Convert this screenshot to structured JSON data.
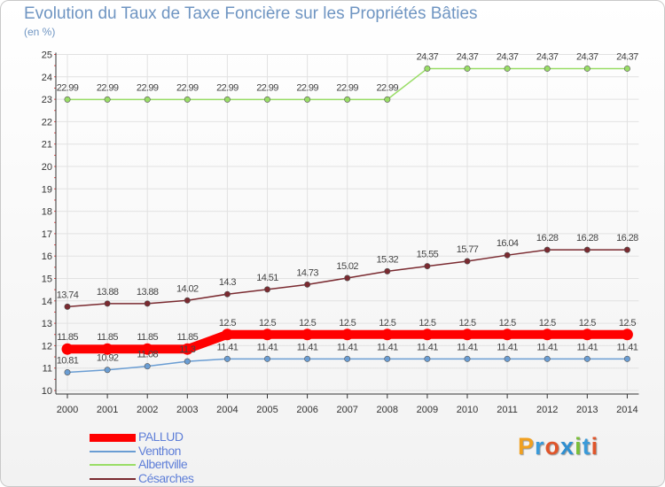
{
  "title": "Evolution du Taux de Taxe Foncière sur les Propriétés Bâties",
  "subtitle": "(en %)",
  "brand": {
    "letters": [
      "P",
      "r",
      "o",
      "x",
      "i",
      "t",
      "i"
    ],
    "colors": [
      "#f0a020",
      "#3a9ad9",
      "#e0552a",
      "#2f8fd0",
      "#7bbf3a",
      "#3a9ad9",
      "#e0552a"
    ]
  },
  "chart_data": {
    "type": "line",
    "title": "Evolution du Taux de Taxe Foncière sur les Propriétés Bâties",
    "ylabel": "(en %)",
    "ylim": [
      10,
      25
    ],
    "yticks": [
      10,
      11,
      12,
      13,
      14,
      15,
      16,
      17,
      18,
      19,
      20,
      21,
      22,
      23,
      24,
      25
    ],
    "categories": [
      "2000",
      "2001",
      "2002",
      "2003",
      "2004",
      "2005",
      "2006",
      "2007",
      "2008",
      "2009",
      "2010",
      "2011",
      "2012",
      "2013",
      "2014"
    ],
    "series": [
      {
        "name": "PALLUD",
        "color": "#ff0000",
        "width": 10,
        "values": [
          11.85,
          11.85,
          11.85,
          11.85,
          12.5,
          12.5,
          12.5,
          12.5,
          12.5,
          12.5,
          12.5,
          12.5,
          12.5,
          12.5,
          12.5
        ],
        "labels": [
          "11.85",
          "11.85",
          "11.85",
          "11.85",
          "12.5",
          "12.5",
          "12.5",
          "12.5",
          "12.5",
          "12.5",
          "12.5",
          "12.5",
          "12.5",
          "12.5",
          "12.5"
        ]
      },
      {
        "name": "Venthon",
        "color": "#6a9dd3",
        "width": 1.5,
        "values": [
          10.81,
          10.92,
          11.08,
          11.3,
          11.41,
          11.41,
          11.41,
          11.41,
          11.41,
          11.41,
          11.41,
          11.41,
          11.41,
          11.41,
          11.41
        ],
        "labels": [
          "10.81",
          "10.92",
          "11.08",
          "11.3",
          "11.41",
          "11.41",
          "11.41",
          "11.41",
          "11.41",
          "11.41",
          "11.41",
          "11.41",
          "11.41",
          "11.41",
          "11.41"
        ]
      },
      {
        "name": "Albertville",
        "color": "#99dd66",
        "width": 1.5,
        "values": [
          22.99,
          22.99,
          22.99,
          22.99,
          22.99,
          22.99,
          22.99,
          22.99,
          22.99,
          24.37,
          24.37,
          24.37,
          24.37,
          24.37,
          24.37
        ],
        "labels": [
          "22.99",
          "22.99",
          "22.99",
          "22.99",
          "22.99",
          "22.99",
          "22.99",
          "22.99",
          "22.99",
          "24.37",
          "24.37",
          "24.37",
          "24.37",
          "24.37",
          "24.37"
        ]
      },
      {
        "name": "Césarches",
        "color": "#7a2a30",
        "width": 1.5,
        "values": [
          13.74,
          13.88,
          13.88,
          14.02,
          14.3,
          14.51,
          14.73,
          15.02,
          15.32,
          15.55,
          15.77,
          16.04,
          16.28,
          16.28,
          16.28
        ],
        "labels": [
          "13.74",
          "13.88",
          "13.88",
          "14.02",
          "14.3",
          "14.51",
          "14.73",
          "15.02",
          "15.32",
          "15.55",
          "15.77",
          "16.04",
          "16.28",
          "16.28",
          "16.28"
        ]
      }
    ]
  }
}
